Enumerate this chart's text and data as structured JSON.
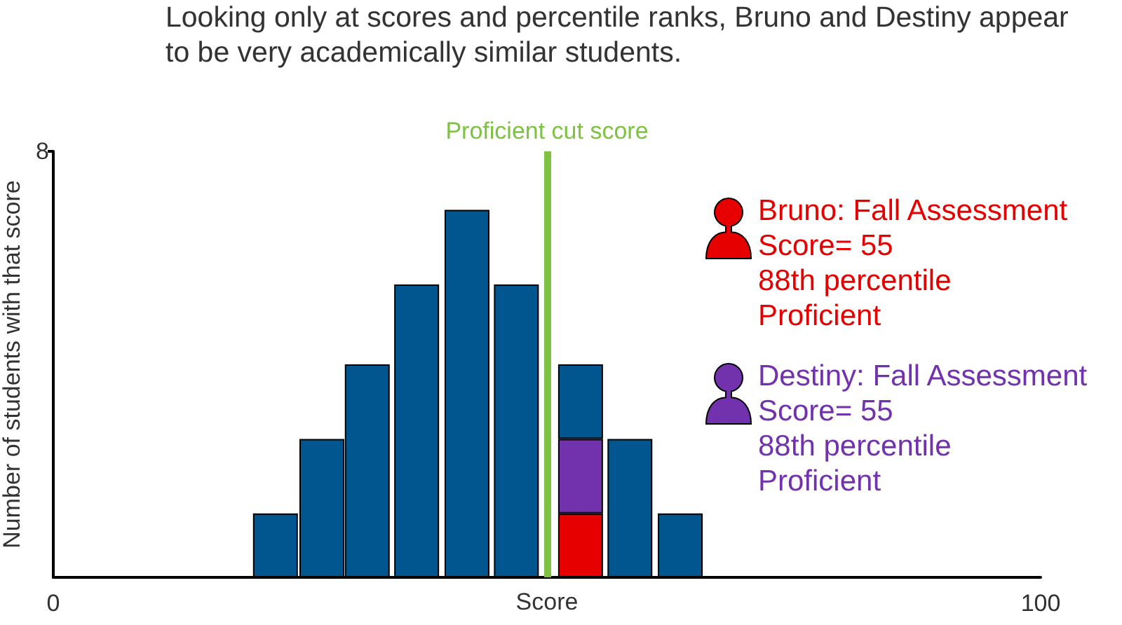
{
  "chart_data": {
    "type": "bar",
    "title": "Looking only at scores and percentile ranks, Bruno and Destiny appear to be very academically similar students.",
    "xlabel": "Score",
    "ylabel": "Number of students with that score",
    "x": [
      22.5,
      27.2,
      31.8,
      36.8,
      41.9,
      46.9,
      53.4,
      58.4,
      63.5
    ],
    "xlim": [
      0,
      100
    ],
    "xticks": [
      0,
      100
    ],
    "ylim": [
      0,
      8
    ],
    "yticks": [
      8
    ],
    "stacked": true,
    "series": [
      {
        "name": "Bruno: Fall Assessment\nScore= 55\n88th percentile\nProficient",
        "color": "#e60000",
        "values": [
          null,
          null,
          null,
          null,
          null,
          null,
          1.2,
          null,
          null
        ]
      },
      {
        "name": "Destiny: Fall Assessment\nScore= 55\n88th percentile\nProficient",
        "color": "#7232ad",
        "values": [
          null,
          null,
          null,
          null,
          null,
          null,
          1.4,
          null,
          null
        ]
      },
      {
        "color": "#02568f",
        "values": [
          1.2,
          2.6,
          4.0,
          5.5,
          6.9,
          5.5,
          1.4,
          2.6,
          1.2
        ]
      }
    ],
    "ref_lines": [
      {
        "axis": "x",
        "value": 50,
        "label": "Proficient cut score",
        "color": "#7dc242"
      }
    ],
    "legend": "top right"
  }
}
